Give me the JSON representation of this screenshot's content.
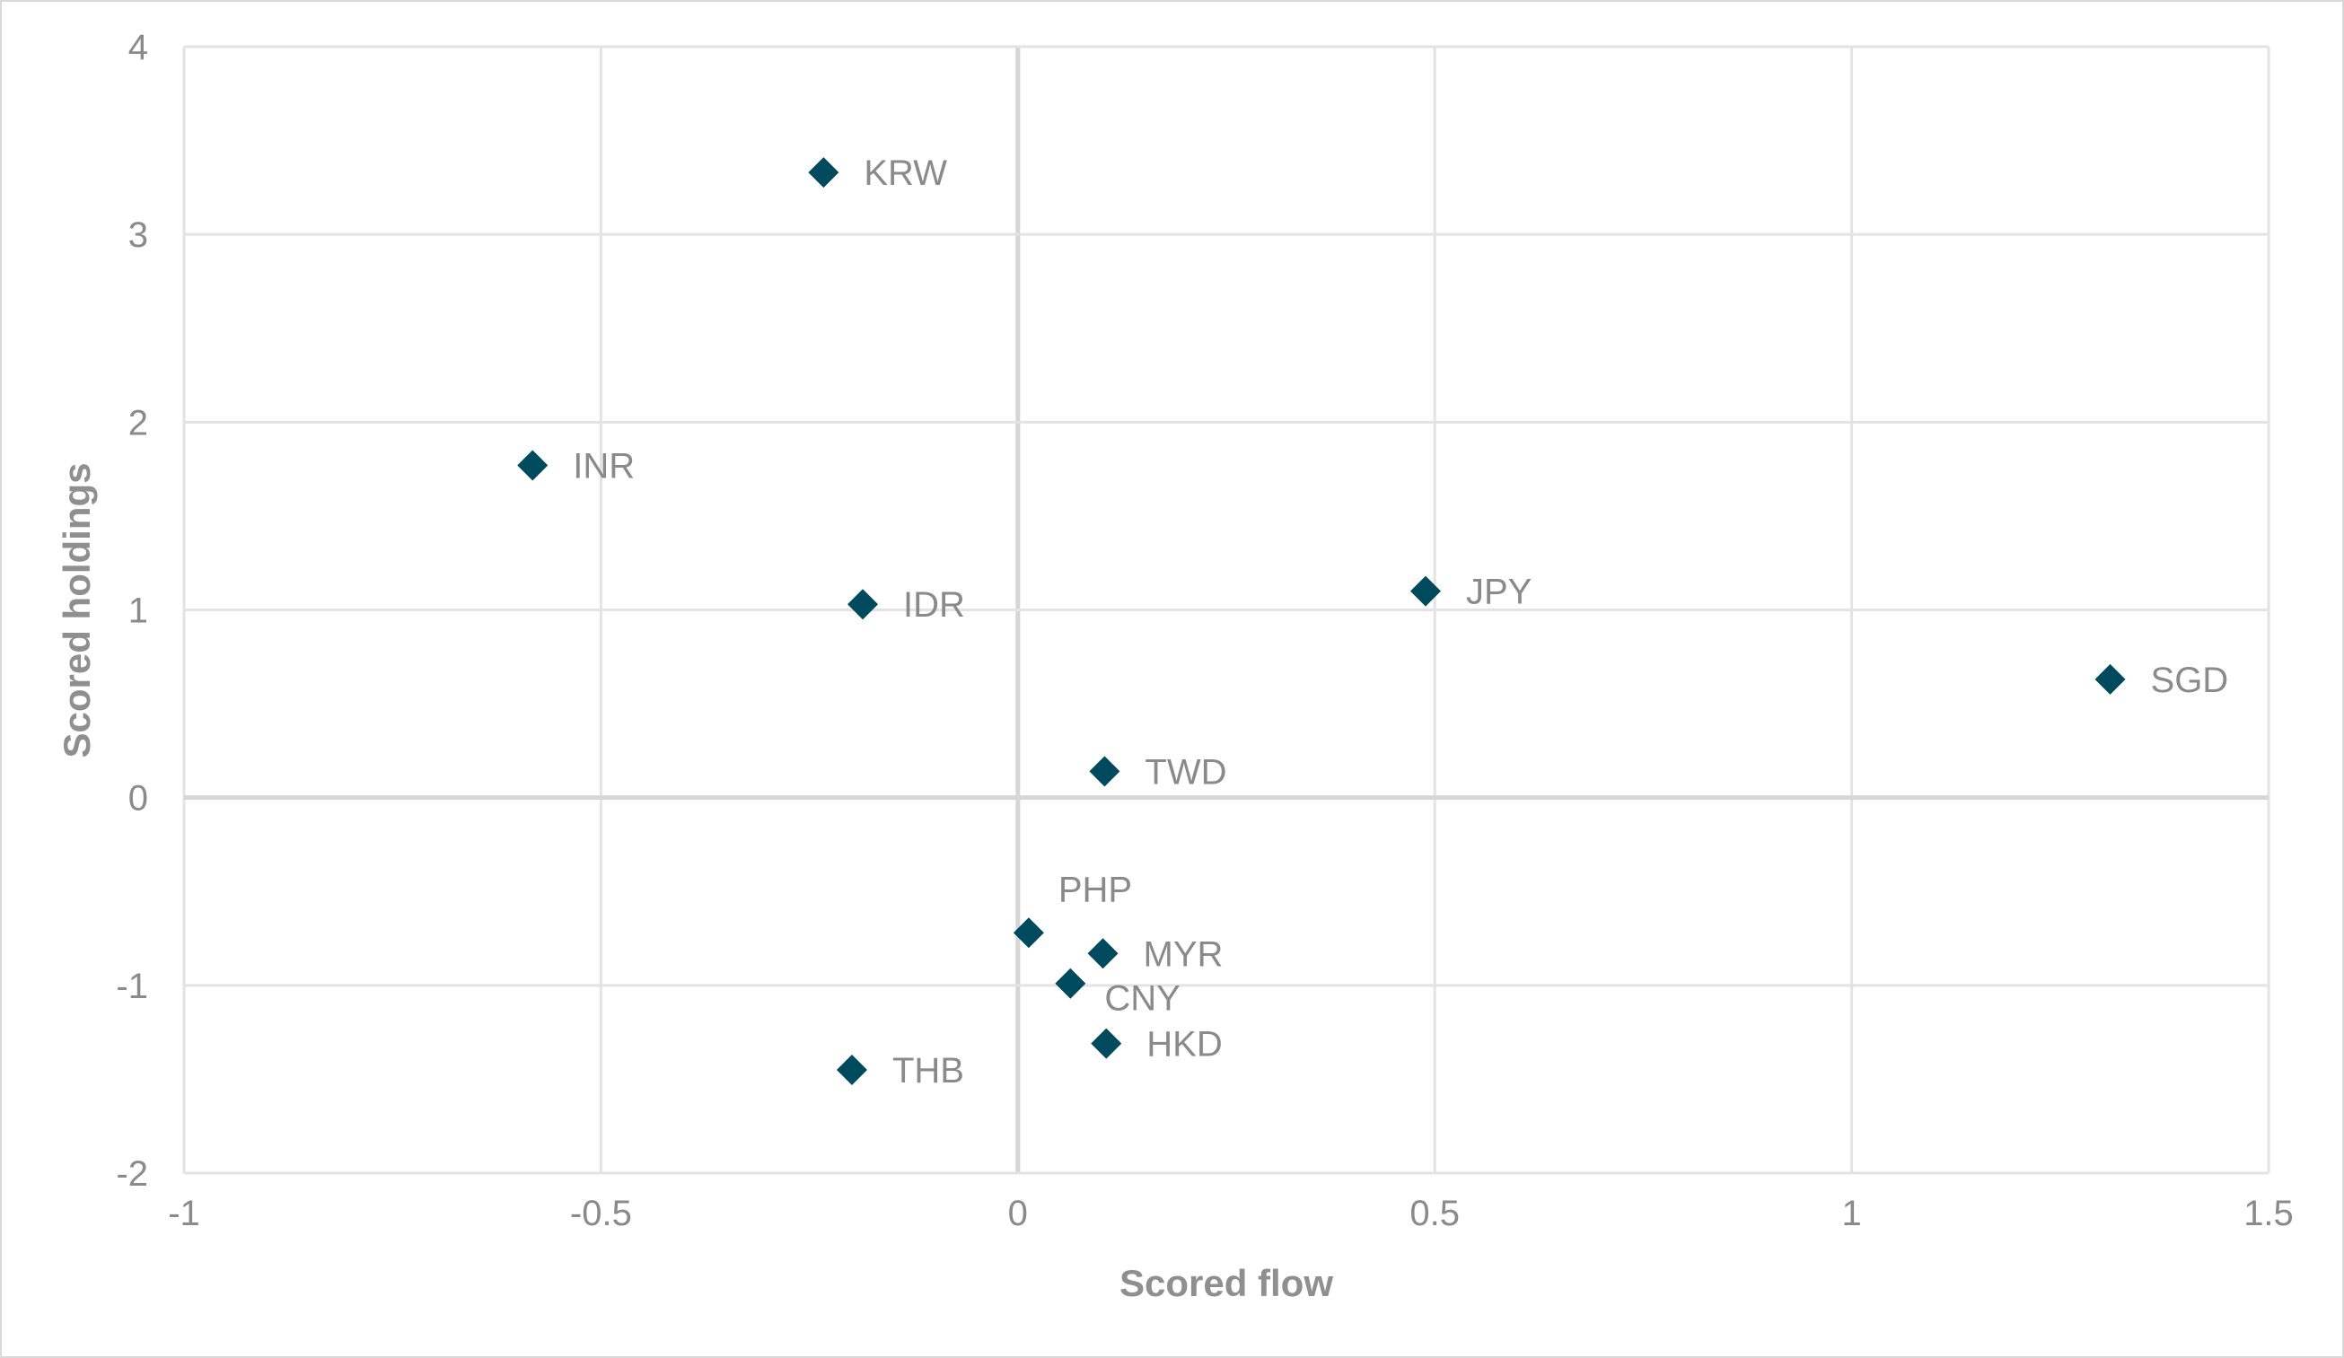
{
  "chart_data": {
    "type": "scatter",
    "xlabel": "Scored flow",
    "ylabel": "Scored holdings",
    "xlim": [
      -1,
      1.5
    ],
    "ylim": [
      -2,
      4
    ],
    "xticks": [
      -1,
      -0.5,
      0,
      0.5,
      1,
      1.5
    ],
    "yticks": [
      -2,
      -1,
      0,
      1,
      2,
      3,
      4
    ],
    "grid": true,
    "marker": "diamond",
    "marker_color": "#004a5e",
    "points": [
      {
        "label": "KRW",
        "x": -0.233,
        "y": 3.33,
        "label_pos": "right"
      },
      {
        "label": "INR",
        "x": -0.582,
        "y": 1.77,
        "label_pos": "right"
      },
      {
        "label": "IDR",
        "x": -0.186,
        "y": 1.03,
        "label_pos": "right"
      },
      {
        "label": "JPY",
        "x": 0.489,
        "y": 1.1,
        "label_pos": "right"
      },
      {
        "label": "SGD",
        "x": 1.31,
        "y": 0.63,
        "label_pos": "right"
      },
      {
        "label": "TWD",
        "x": 0.104,
        "y": 0.14,
        "label_pos": "right"
      },
      {
        "label": "PHP",
        "x": 0.013,
        "y": -0.72,
        "label_pos": "above"
      },
      {
        "label": "MYR",
        "x": 0.102,
        "y": -0.83,
        "label_pos": "right"
      },
      {
        "label": "CNY",
        "x": 0.063,
        "y": -0.99,
        "label_pos": "below"
      },
      {
        "label": "HKD",
        "x": 0.106,
        "y": -1.31,
        "label_pos": "right"
      },
      {
        "label": "THB",
        "x": -0.199,
        "y": -1.45,
        "label_pos": "right"
      }
    ]
  }
}
